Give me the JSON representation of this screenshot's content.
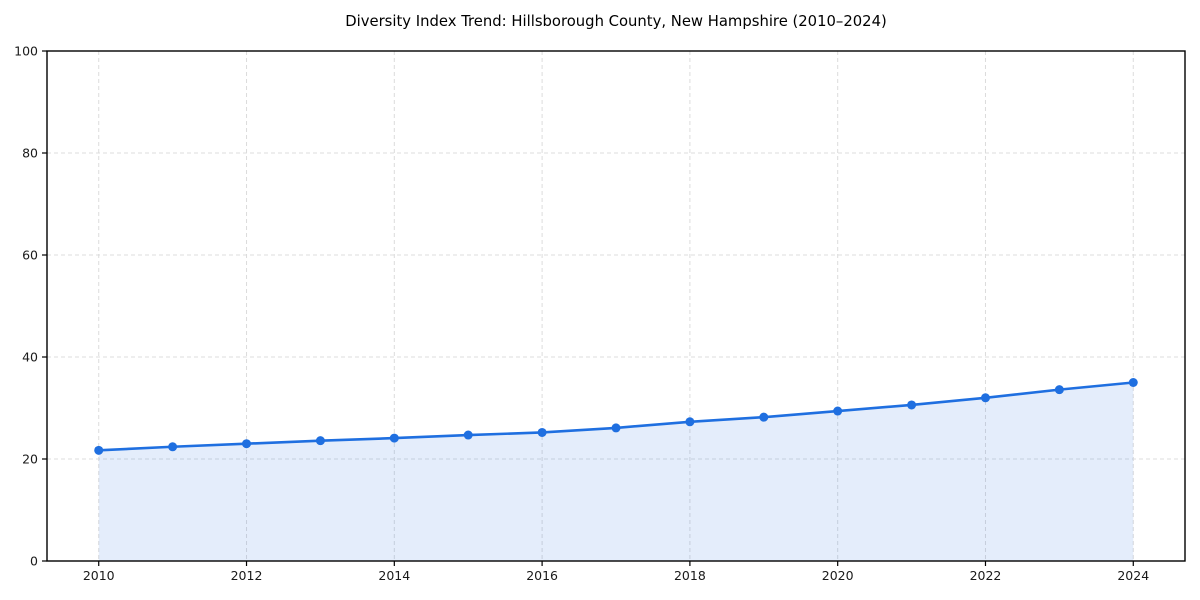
{
  "title": "Diversity Index Trend: Hillsborough County, New Hampshire (2010–2024)",
  "accent_color": "#1f6fe0",
  "chart_data": {
    "type": "area",
    "title": "Diversity Index Trend: Hillsborough County, New Hampshire (2010–2024)",
    "x": [
      2010,
      2011,
      2012,
      2013,
      2014,
      2015,
      2016,
      2017,
      2018,
      2019,
      2020,
      2021,
      2022,
      2023,
      2024
    ],
    "series": [
      {
        "name": "Diversity Index",
        "values": [
          21.7,
          22.4,
          23.0,
          23.6,
          24.1,
          24.7,
          25.2,
          26.1,
          27.3,
          28.2,
          29.4,
          30.6,
          32.0,
          33.6,
          35.0
        ]
      }
    ],
    "xlabel": "",
    "ylabel": "",
    "xlim": [
      2009.3,
      2024.7
    ],
    "ylim": [
      0,
      100
    ],
    "x_ticks": [
      2010,
      2012,
      2014,
      2016,
      2018,
      2020,
      2022,
      2024
    ],
    "y_ticks": [
      0,
      20,
      40,
      60,
      80,
      100
    ],
    "grid": "dashed",
    "legend": "none",
    "line_color": "#1f6fe0",
    "marker": "circle",
    "marker_radius": 4.5,
    "line_width": 2.6,
    "fill_opacity": 0.12,
    "grid_color": "#dcdcdc",
    "frame_color": "#000000",
    "tick_label_color": "#1a1a1a"
  }
}
